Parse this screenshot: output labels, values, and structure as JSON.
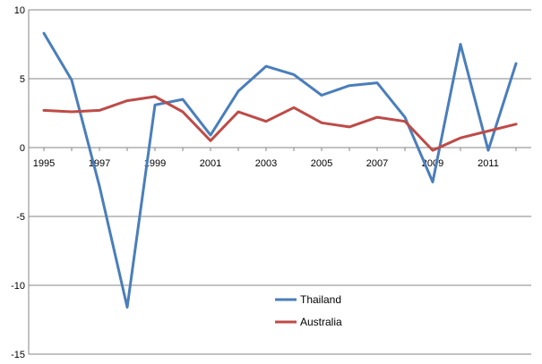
{
  "chart_data": {
    "type": "line",
    "title": "",
    "xlabel": "",
    "ylabel": "",
    "x": [
      1995,
      1996,
      1997,
      1998,
      1999,
      2000,
      2001,
      2002,
      2003,
      2004,
      2005,
      2006,
      2007,
      2008,
      2009,
      2010,
      2011,
      2012
    ],
    "x_tick_labels": [
      "1995",
      "1997",
      "1999",
      "2001",
      "2003",
      "2005",
      "2007",
      "2009",
      "2011"
    ],
    "x_tick_values": [
      1995,
      1997,
      1999,
      2001,
      2003,
      2005,
      2007,
      2009,
      2011
    ],
    "y_tick_labels": [
      "10",
      "5",
      "0",
      "-5",
      "-10",
      "-15"
    ],
    "y_tick_values": [
      10,
      5,
      0,
      -5,
      -10,
      -15
    ],
    "ylim": [
      -15,
      10
    ],
    "grid": true,
    "legend_position": "bottom-center",
    "series": [
      {
        "name": "Thailand",
        "color": "#4a7ebb",
        "values": [
          8.3,
          4.9,
          -2.8,
          -11.6,
          3.1,
          3.5,
          0.9,
          4.1,
          5.9,
          5.3,
          3.8,
          4.5,
          4.7,
          2.2,
          -2.5,
          7.5,
          -0.2,
          6.1
        ]
      },
      {
        "name": "Australia",
        "color": "#be4b48",
        "values": [
          2.7,
          2.6,
          2.7,
          3.4,
          3.7,
          2.6,
          0.5,
          2.6,
          1.9,
          2.9,
          1.8,
          1.5,
          2.2,
          1.9,
          -0.2,
          0.7,
          1.2,
          1.7
        ]
      }
    ]
  }
}
